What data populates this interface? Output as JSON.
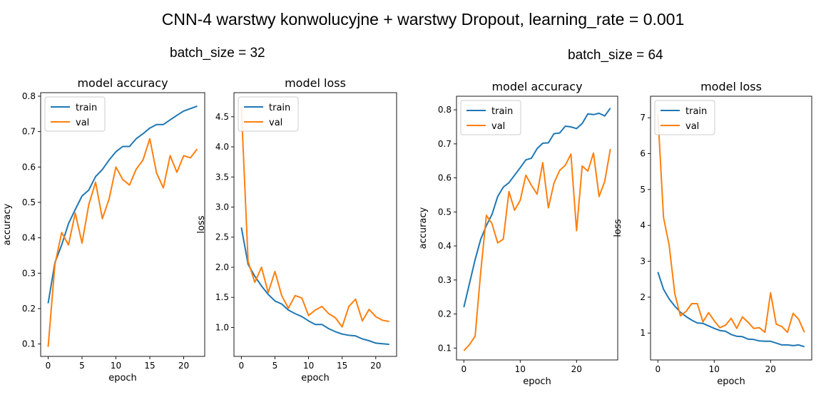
{
  "title": "CNN-4 warstwy konwolucyjne + warstwy Dropout, learning_rate = 0.001",
  "groups": [
    {
      "label": "batch_size = 32"
    },
    {
      "label": "batch_size = 64"
    }
  ],
  "colors": {
    "train": "#1f77b4",
    "val": "#ff7f0e"
  },
  "chart_data": [
    {
      "group": "batch_size = 32",
      "type": "line",
      "title": "model accuracy",
      "xlabel": "epoch",
      "ylabel": "accuracy",
      "xlim": [
        -1.1,
        23.1
      ],
      "ylim": [
        0.065,
        0.81
      ],
      "xticks": [
        0,
        5,
        10,
        15,
        20
      ],
      "yticks": [
        0.1,
        0.2,
        0.3,
        0.4,
        0.5,
        0.6,
        0.7,
        0.8
      ],
      "legend": "top-left",
      "series": [
        {
          "name": "train",
          "values": [
            0.215,
            0.33,
            0.38,
            0.44,
            0.48,
            0.518,
            0.535,
            0.573,
            0.593,
            0.62,
            0.643,
            0.658,
            0.658,
            0.68,
            0.694,
            0.71,
            0.72,
            0.72,
            0.733,
            0.746,
            0.758,
            0.765,
            0.772
          ]
        },
        {
          "name": "val",
          "values": [
            0.092,
            0.325,
            0.415,
            0.38,
            0.47,
            0.385,
            0.494,
            0.557,
            0.454,
            0.51,
            0.6,
            0.565,
            0.549,
            0.594,
            0.62,
            0.68,
            0.583,
            0.541,
            0.632,
            0.585,
            0.632,
            0.626,
            0.651
          ]
        }
      ]
    },
    {
      "group": "batch_size = 32",
      "type": "line",
      "title": "model loss",
      "xlabel": "epoch",
      "ylabel": "loss",
      "xlim": [
        -1.1,
        23.1
      ],
      "ylim": [
        0.52,
        4.9
      ],
      "xticks": [
        0,
        5,
        10,
        15,
        20
      ],
      "yticks": [
        1.0,
        1.5,
        2.0,
        2.5,
        3.0,
        3.5,
        4.0,
        4.5
      ],
      "legend": "top-left",
      "series": [
        {
          "name": "train",
          "values": [
            2.66,
            2.05,
            1.85,
            1.69,
            1.55,
            1.44,
            1.39,
            1.29,
            1.23,
            1.18,
            1.11,
            1.05,
            1.05,
            0.98,
            0.93,
            0.89,
            0.87,
            0.86,
            0.81,
            0.78,
            0.74,
            0.73,
            0.72
          ]
        },
        {
          "name": "val",
          "values": [
            4.65,
            2.1,
            1.75,
            2.0,
            1.58,
            1.93,
            1.53,
            1.32,
            1.53,
            1.49,
            1.2,
            1.29,
            1.35,
            1.23,
            1.16,
            1.01,
            1.35,
            1.47,
            1.11,
            1.3,
            1.18,
            1.12,
            1.1
          ]
        }
      ]
    },
    {
      "group": "batch_size = 64",
      "type": "line",
      "title": "model accuracy",
      "xlabel": "epoch",
      "ylabel": "accuracy",
      "xlim": [
        -1.3,
        27.3
      ],
      "ylim": [
        0.065,
        0.84
      ],
      "xticks": [
        0,
        10,
        20
      ],
      "yticks": [
        0.1,
        0.2,
        0.3,
        0.4,
        0.5,
        0.6,
        0.7,
        0.8
      ],
      "legend": "top-left",
      "series": [
        {
          "name": "train",
          "values": [
            0.22,
            0.29,
            0.36,
            0.42,
            0.46,
            0.493,
            0.545,
            0.573,
            0.586,
            0.608,
            0.63,
            0.653,
            0.658,
            0.686,
            0.702,
            0.703,
            0.73,
            0.732,
            0.752,
            0.75,
            0.745,
            0.76,
            0.788,
            0.786,
            0.79,
            0.782,
            0.805
          ]
        },
        {
          "name": "val",
          "values": [
            0.092,
            0.11,
            0.135,
            0.325,
            0.49,
            0.465,
            0.409,
            0.42,
            0.56,
            0.505,
            0.534,
            0.608,
            0.578,
            0.552,
            0.645,
            0.512,
            0.585,
            0.622,
            0.637,
            0.67,
            0.445,
            0.635,
            0.62,
            0.673,
            0.545,
            0.59,
            0.685
          ]
        }
      ]
    },
    {
      "group": "batch_size = 64",
      "type": "line",
      "title": "model loss",
      "xlabel": "epoch",
      "ylabel": "loss",
      "xlim": [
        -1.3,
        27.3
      ],
      "ylim": [
        0.25,
        7.6
      ],
      "xticks": [
        0,
        10,
        20
      ],
      "yticks": [
        1,
        2,
        3,
        4,
        5,
        6,
        7
      ],
      "legend": "top-left",
      "series": [
        {
          "name": "train",
          "values": [
            2.7,
            2.22,
            1.95,
            1.75,
            1.58,
            1.46,
            1.36,
            1.28,
            1.27,
            1.2,
            1.13,
            1.07,
            1.05,
            0.96,
            0.91,
            0.9,
            0.83,
            0.82,
            0.78,
            0.77,
            0.77,
            0.72,
            0.67,
            0.67,
            0.65,
            0.67,
            0.62
          ]
        },
        {
          "name": "val",
          "values": [
            7.1,
            4.22,
            3.45,
            2.1,
            1.48,
            1.6,
            1.82,
            1.82,
            1.31,
            1.57,
            1.34,
            1.15,
            1.22,
            1.41,
            1.13,
            1.45,
            1.3,
            1.13,
            1.15,
            1.02,
            2.12,
            1.25,
            1.18,
            1.02,
            1.55,
            1.38,
            1.02
          ]
        }
      ]
    }
  ]
}
